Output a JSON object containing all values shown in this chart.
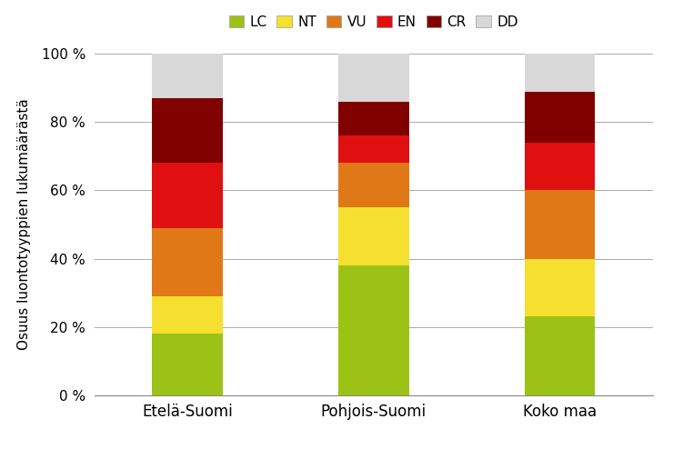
{
  "categories": [
    "Etelä-Suomi",
    "Pohjois-Suomi",
    "Koko maa"
  ],
  "series": {
    "LC": [
      18,
      38,
      23
    ],
    "NT": [
      11,
      17,
      17
    ],
    "VU": [
      20,
      13,
      20
    ],
    "EN": [
      19,
      8,
      14
    ],
    "CR": [
      19,
      10,
      15
    ],
    "DD": [
      13,
      14,
      11
    ]
  },
  "colors": {
    "LC": "#9dc216",
    "NT": "#f5e030",
    "VU": "#e07818",
    "EN": "#e01010",
    "CR": "#800000",
    "DD": "#d8d8d8"
  },
  "ylabel": "Osuus luontotyyppien lukumäärästä",
  "ylim": [
    0,
    100
  ],
  "yticks": [
    0,
    20,
    40,
    60,
    80,
    100
  ],
  "ytick_labels": [
    "0 %",
    "20 %",
    "40 %",
    "60 %",
    "80 %",
    "100 %"
  ],
  "bar_width": 0.38,
  "legend_order": [
    "LC",
    "NT",
    "VU",
    "EN",
    "CR",
    "DD"
  ],
  "background_color": "#ffffff",
  "grid_color": "#aaaaaa",
  "spine_color": "#888888"
}
